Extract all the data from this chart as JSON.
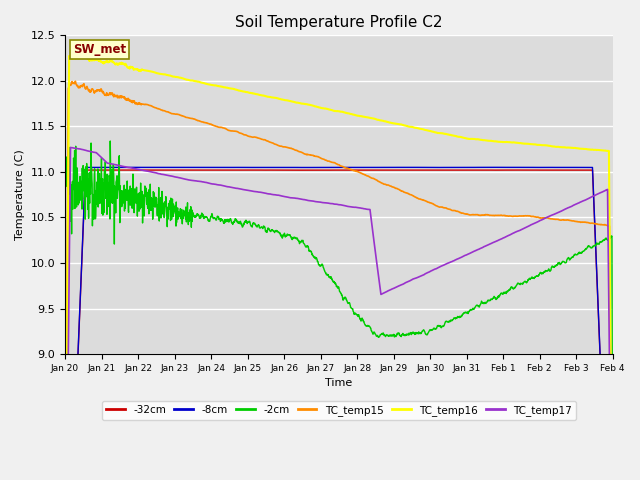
{
  "title": "Soil Temperature Profile C2",
  "xlabel": "Time",
  "ylabel": "Temperature (C)",
  "ylim": [
    9.0,
    12.5
  ],
  "xlim": [
    0,
    15
  ],
  "fig_bg": "#f0f0f0",
  "plot_bg": "#dcdcdc",
  "xtick_labels": [
    "Jan 20",
    "Jan 21",
    "Jan 22",
    "Jan 23",
    "Jan 24",
    "Jan 25",
    "Jan 26",
    "Jan 27",
    "Jan 28",
    "Jan 29",
    "Jan 30",
    "Jan 31",
    "Feb 1",
    "Feb 2",
    "Feb 3",
    "Feb 4"
  ],
  "colors": {
    "TC_temp15": "#ff8c00",
    "TC_temp16": "#ffff00",
    "TC_temp17": "#9932cc",
    "neg2cm": "#00cc00",
    "neg8cm": "#0000cc",
    "neg32cm": "#cc0000"
  },
  "linewidths": {
    "TC_temp15": 1.2,
    "TC_temp16": 1.5,
    "TC_temp17": 1.2,
    "neg2cm": 1.0,
    "neg8cm": 1.0,
    "neg32cm": 1.0
  },
  "legend_labels": [
    "-32cm",
    "-8cm",
    "-2cm",
    "TC_temp15",
    "TC_temp16",
    "TC_temp17"
  ],
  "legend_colors": [
    "#cc0000",
    "#0000cc",
    "#00cc00",
    "#ff8c00",
    "#ffff00",
    "#9932cc"
  ],
  "annotation": "SW_met",
  "annotation_bg": "#ffffcc",
  "annotation_fg": "#880000",
  "annotation_border": "#888800"
}
